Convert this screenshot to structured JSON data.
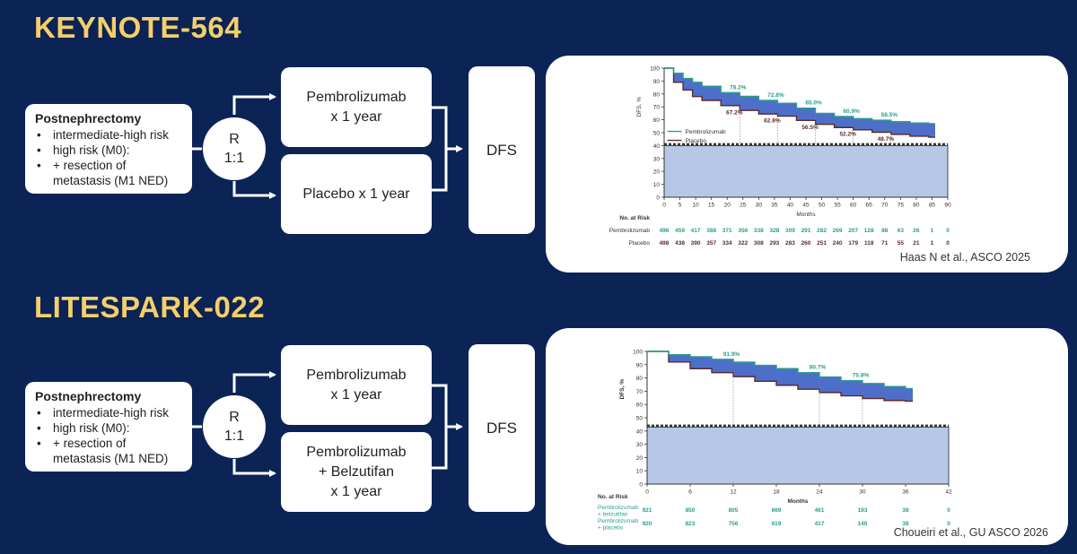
{
  "colors": {
    "background": "#0b2355",
    "title": "#f4cf6a",
    "treatment": "#2a9d8f",
    "control": "#5a2a2a",
    "band": "#3a5fc4",
    "lower_fill": "#b7c7e6"
  },
  "trials": [
    {
      "title": "KEYNOTE-564",
      "population": {
        "title": "Postnephrectomy",
        "bullets": [
          "intermediate-high risk",
          "high risk (M0):",
          "+ resection of metastasis (M1 NED)"
        ]
      },
      "randomization": {
        "r": "R",
        "ratio": "1:1"
      },
      "arms": [
        {
          "lines": [
            "Pembrolizumab",
            "x 1 year"
          ]
        },
        {
          "lines": [
            "Placebo x 1 year"
          ]
        }
      ],
      "endpoint": "DFS",
      "citation": "Haas N et al., ASCO 2025"
    },
    {
      "title": "LITESPARK-022",
      "population": {
        "title": "Postnephrectomy",
        "bullets": [
          "intermediate-high risk",
          "high risk (M0):",
          "+ resection of metastasis (M1 NED)"
        ]
      },
      "randomization": {
        "r": "R",
        "ratio": "1:1"
      },
      "arms": [
        {
          "lines": [
            "Pembrolizumab",
            "x 1 year"
          ]
        },
        {
          "lines": [
            "Pembrolizumab",
            "+ Belzutifan",
            "x 1 year"
          ]
        }
      ],
      "endpoint": "DFS",
      "citation": "Choueiri et al., GU ASCO 2026"
    }
  ],
  "chart_data": [
    {
      "type": "line",
      "ylabel": "DFS, %",
      "xlabel": "Months",
      "xlim": [
        0,
        90
      ],
      "ylim": [
        0,
        100
      ],
      "xticks": [
        0,
        5,
        10,
        15,
        20,
        25,
        30,
        35,
        40,
        45,
        50,
        55,
        60,
        65,
        70,
        75,
        80,
        85,
        90
      ],
      "yticks": [
        0,
        10,
        20,
        30,
        40,
        50,
        60,
        70,
        80,
        90,
        100
      ],
      "legend": [
        "Pembrolizumab",
        "Placebo"
      ],
      "legend_position": "middle-left",
      "series": [
        {
          "name": "Pembrolizumab",
          "x": [
            0,
            3,
            6,
            9,
            12,
            18,
            24,
            30,
            36,
            42,
            48,
            54,
            60,
            66,
            72,
            78,
            84,
            86
          ],
          "y": [
            100,
            96,
            92,
            89,
            86,
            81,
            78.2,
            75,
            72.8,
            69,
            65,
            62.5,
            60.9,
            59.7,
            58.5,
            57.5,
            57,
            57
          ]
        },
        {
          "name": "Placebo",
          "x": [
            0,
            3,
            6,
            9,
            12,
            18,
            24,
            30,
            36,
            42,
            48,
            54,
            60,
            66,
            72,
            78,
            84,
            86
          ],
          "y": [
            100,
            89,
            83,
            78,
            75,
            71,
            67.2,
            64.5,
            62.8,
            59.5,
            56.5,
            54,
            52.2,
            50.3,
            48.7,
            47.3,
            46.5,
            46.5
          ]
        }
      ],
      "annotations": {
        "treatment": [
          {
            "x": 24,
            "label": "78.2%"
          },
          {
            "x": 36,
            "label": "72.8%"
          },
          {
            "x": 48,
            "label": "65.0%"
          },
          {
            "x": 60,
            "label": "60.9%"
          },
          {
            "x": 72,
            "label": "58.5%"
          }
        ],
        "control": [
          {
            "x": 24,
            "label": "67.2%"
          },
          {
            "x": 36,
            "label": "62.8%"
          },
          {
            "x": 48,
            "label": "56.5%"
          },
          {
            "x": 60,
            "label": "52.2%"
          },
          {
            "x": 72,
            "label": "48.7%"
          }
        ]
      },
      "risk_table": {
        "title": "No. at Risk",
        "rows": [
          {
            "label": "Pembrolizumab",
            "values": [
              "496",
              "459",
              "417",
              "388",
              "371",
              "356",
              "338",
              "328",
              "309",
              "291",
              "282",
              "269",
              "207",
              "128",
              "88",
              "63",
              "26",
              "1",
              "0"
            ]
          },
          {
            "label": "Placebo",
            "values": [
              "498",
              "438",
              "390",
              "357",
              "334",
              "322",
              "308",
              "293",
              "283",
              "260",
              "251",
              "240",
              "179",
              "118",
              "71",
              "55",
              "21",
              "1",
              "0"
            ]
          }
        ]
      }
    },
    {
      "type": "line",
      "ylabel": "DFS, %",
      "xlabel": "Months",
      "xlim": [
        0,
        42
      ],
      "ylim": [
        0,
        100
      ],
      "xticks": [
        0,
        6,
        12,
        18,
        24,
        30,
        36,
        42
      ],
      "yticks": [
        0,
        10,
        20,
        30,
        40,
        50,
        60,
        70,
        80,
        90,
        100
      ],
      "series": [
        {
          "name": "Pembrolizumab + belzutifan",
          "x": [
            0,
            3,
            6,
            9,
            12,
            15,
            18,
            21,
            24,
            27,
            30,
            33,
            36,
            37
          ],
          "y": [
            100,
            97.5,
            96,
            94,
            91.9,
            89.5,
            87,
            84,
            80.7,
            78,
            75.8,
            73.5,
            72,
            72
          ]
        },
        {
          "name": "Pembrolizumab + placebo",
          "x": [
            0,
            3,
            6,
            9,
            12,
            15,
            18,
            21,
            24,
            27,
            30,
            33,
            36,
            37
          ],
          "y": [
            100,
            92,
            87,
            84,
            81,
            77.5,
            74.5,
            71.5,
            69,
            66.5,
            64.5,
            63,
            62.5,
            62.5
          ]
        }
      ],
      "annotations": {
        "treatment": [
          {
            "x": 12,
            "label": "91.9%"
          },
          {
            "x": 24,
            "label": "80.7%"
          },
          {
            "x": 30,
            "label": "75.8%"
          }
        ]
      },
      "risk_table": {
        "title": "No. at Risk",
        "rows": [
          {
            "label": "Pembrolizumab + belzutifan",
            "values": [
              "921",
              "850",
              "805",
              "669",
              "461",
              "193",
              "38",
              "0"
            ]
          },
          {
            "label": "Pembrolizumab + placebo",
            "values": [
              "920",
              "823",
              "756",
              "619",
              "417",
              "140",
              "38",
              "0"
            ]
          }
        ]
      }
    }
  ]
}
